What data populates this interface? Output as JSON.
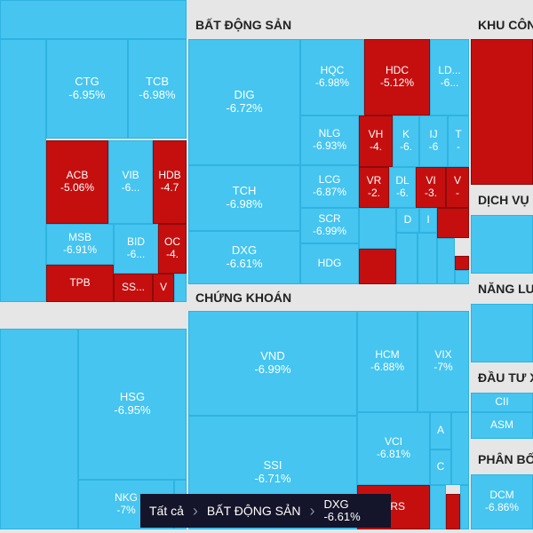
{
  "colors": {
    "up_blue": "#45c5f0",
    "down_red": "#c50f0f",
    "header_bg": "#e6e6e6",
    "breadcrumb_bg": "#14142a"
  },
  "sections": {
    "bat_dong_san": "BẤT ĐỘNG SẢN",
    "chung_khoan": "CHỨNG KHOÁN",
    "khu_cong": "KHU CÔN",
    "dich_vu": "DỊCH VỤ",
    "nang_luong": "NĂNG LƯ",
    "dau_tu": "ĐẦU TƯ X",
    "phan_bo": "PHÂN BỐ"
  },
  "tiles": {
    "ctg": {
      "s": "CTG",
      "p": "-6.95%"
    },
    "tcb": {
      "s": "TCB",
      "p": "-6.98%"
    },
    "acb": {
      "s": "ACB",
      "p": "-5.06%"
    },
    "vib": {
      "s": "VIB",
      "p": "-6..."
    },
    "hdb": {
      "s": "HDB",
      "p": "-4.7"
    },
    "msb": {
      "s": "MSB",
      "p": "-6.91%"
    },
    "bid": {
      "s": "BID",
      "p": "-6..."
    },
    "oc": {
      "s": "OC",
      "p": "-4."
    },
    "tpb": {
      "s": "TPB"
    },
    "ss": {
      "s": "SS..."
    },
    "v": {
      "s": "V"
    },
    "hsg": {
      "s": "HSG",
      "p": "-6.95%"
    },
    "nkg": {
      "s": "NKG",
      "p": "-7%"
    },
    "dig": {
      "s": "DIG",
      "p": "-6.72%"
    },
    "tch": {
      "s": "TCH",
      "p": "-6.98%"
    },
    "dxg": {
      "s": "DXG",
      "p": "-6.61%"
    },
    "hqc": {
      "s": "HQC",
      "p": "-6.98%"
    },
    "hdc": {
      "s": "HDC",
      "p": "-5.12%"
    },
    "ld": {
      "s": "LD...",
      "p": "-6..."
    },
    "nlg": {
      "s": "NLG",
      "p": "-6.93%"
    },
    "vh": {
      "s": "VH",
      "p": "-4."
    },
    "k": {
      "s": "K",
      "p": "-6."
    },
    "ij": {
      "s": "IJ",
      "p": "-6"
    },
    "t": {
      "s": "T",
      "p": "-"
    },
    "lcg": {
      "s": "LCG",
      "p": "-6.87%"
    },
    "vr": {
      "s": "VR",
      "p": "-2."
    },
    "dl": {
      "s": "DL",
      "p": "-6."
    },
    "vi": {
      "s": "VI",
      "p": "-3."
    },
    "vv": {
      "s": "V",
      "p": "-"
    },
    "scr": {
      "s": "SCR",
      "p": "-6.99%"
    },
    "d": {
      "s": "D"
    },
    "i": {
      "s": "I"
    },
    "hdg": {
      "s": "HDG"
    },
    "vnd": {
      "s": "VND",
      "p": "-6.99%"
    },
    "hcm": {
      "s": "HCM",
      "p": "-6.88%"
    },
    "vix": {
      "s": "VIX",
      "p": "-7%"
    },
    "ssi": {
      "s": "SSI",
      "p": "-6.71%"
    },
    "vci": {
      "s": "VCI",
      "p": "-6.81%"
    },
    "a": {
      "s": "A"
    },
    "c": {
      "s": "C"
    },
    "ors": {
      "s": "ORS"
    },
    "cii": {
      "s": "CII"
    },
    "asm": {
      "s": "ASM"
    },
    "dcm": {
      "s": "DCM",
      "p": "-6.86%"
    }
  },
  "breadcrumb": {
    "all": "Tất cả",
    "sector": "BẤT ĐỘNG SẢN",
    "ticker": "DXG",
    "pct": "-6.61%"
  }
}
